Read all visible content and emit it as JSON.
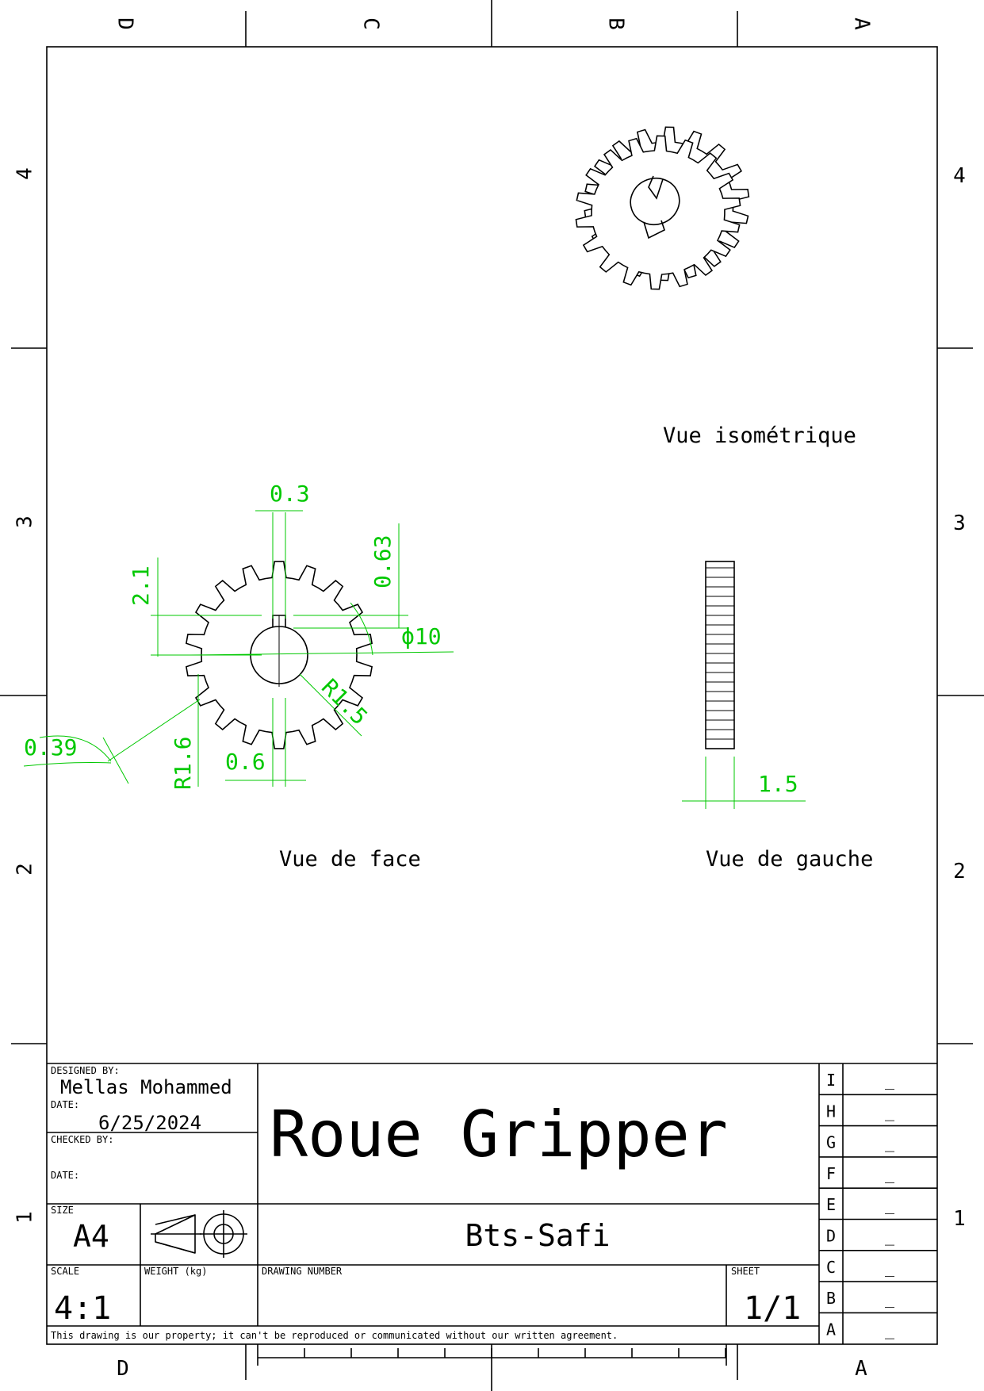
{
  "zones": {
    "columns_top": [
      "D",
      "C",
      "B",
      "A"
    ],
    "columns_bottom": [
      "D",
      "A"
    ],
    "rows": [
      "4",
      "3",
      "2",
      "1"
    ]
  },
  "views": {
    "iso_label": "Vue isométrique",
    "front_label": "Vue de face",
    "left_label": "Vue de gauche"
  },
  "dimensions": {
    "d_03": "0.3",
    "d_063": "0.63",
    "d_21": "2.1",
    "d_phi10": "ϕ10",
    "d_r15": "R1.5",
    "d_r16": "R1.6",
    "d_06": "0.6",
    "d_039": "0.39",
    "d_15": "1.5"
  },
  "title_block": {
    "designed_by_label": "DESIGNED BY:",
    "designed_by": "Mellas Mohammed",
    "date_label": "DATE:",
    "date": "6/25/2024",
    "checked_by_label": "CHECKED BY:",
    "checked_date_label": "DATE:",
    "title": "Roue Gripper",
    "company": "Bts-Safi",
    "size_label": "SIZE",
    "size": "A4",
    "scale_label": "SCALE",
    "scale": "4:1",
    "weight_label": "WEIGHT (kg)",
    "drawing_number_label": "DRAWING NUMBER",
    "sheet_label": "SHEET",
    "sheet": "1/1",
    "disclaimer": "This drawing is our property; it can't be reproduced or communicated without our written agreement."
  },
  "revisions": [
    {
      "letter": "I",
      "value": "_"
    },
    {
      "letter": "H",
      "value": "_"
    },
    {
      "letter": "G",
      "value": "_"
    },
    {
      "letter": "F",
      "value": "_"
    },
    {
      "letter": "E",
      "value": "_"
    },
    {
      "letter": "D",
      "value": "_"
    },
    {
      "letter": "C",
      "value": "_"
    },
    {
      "letter": "B",
      "value": "_"
    },
    {
      "letter": "A",
      "value": "_"
    }
  ]
}
